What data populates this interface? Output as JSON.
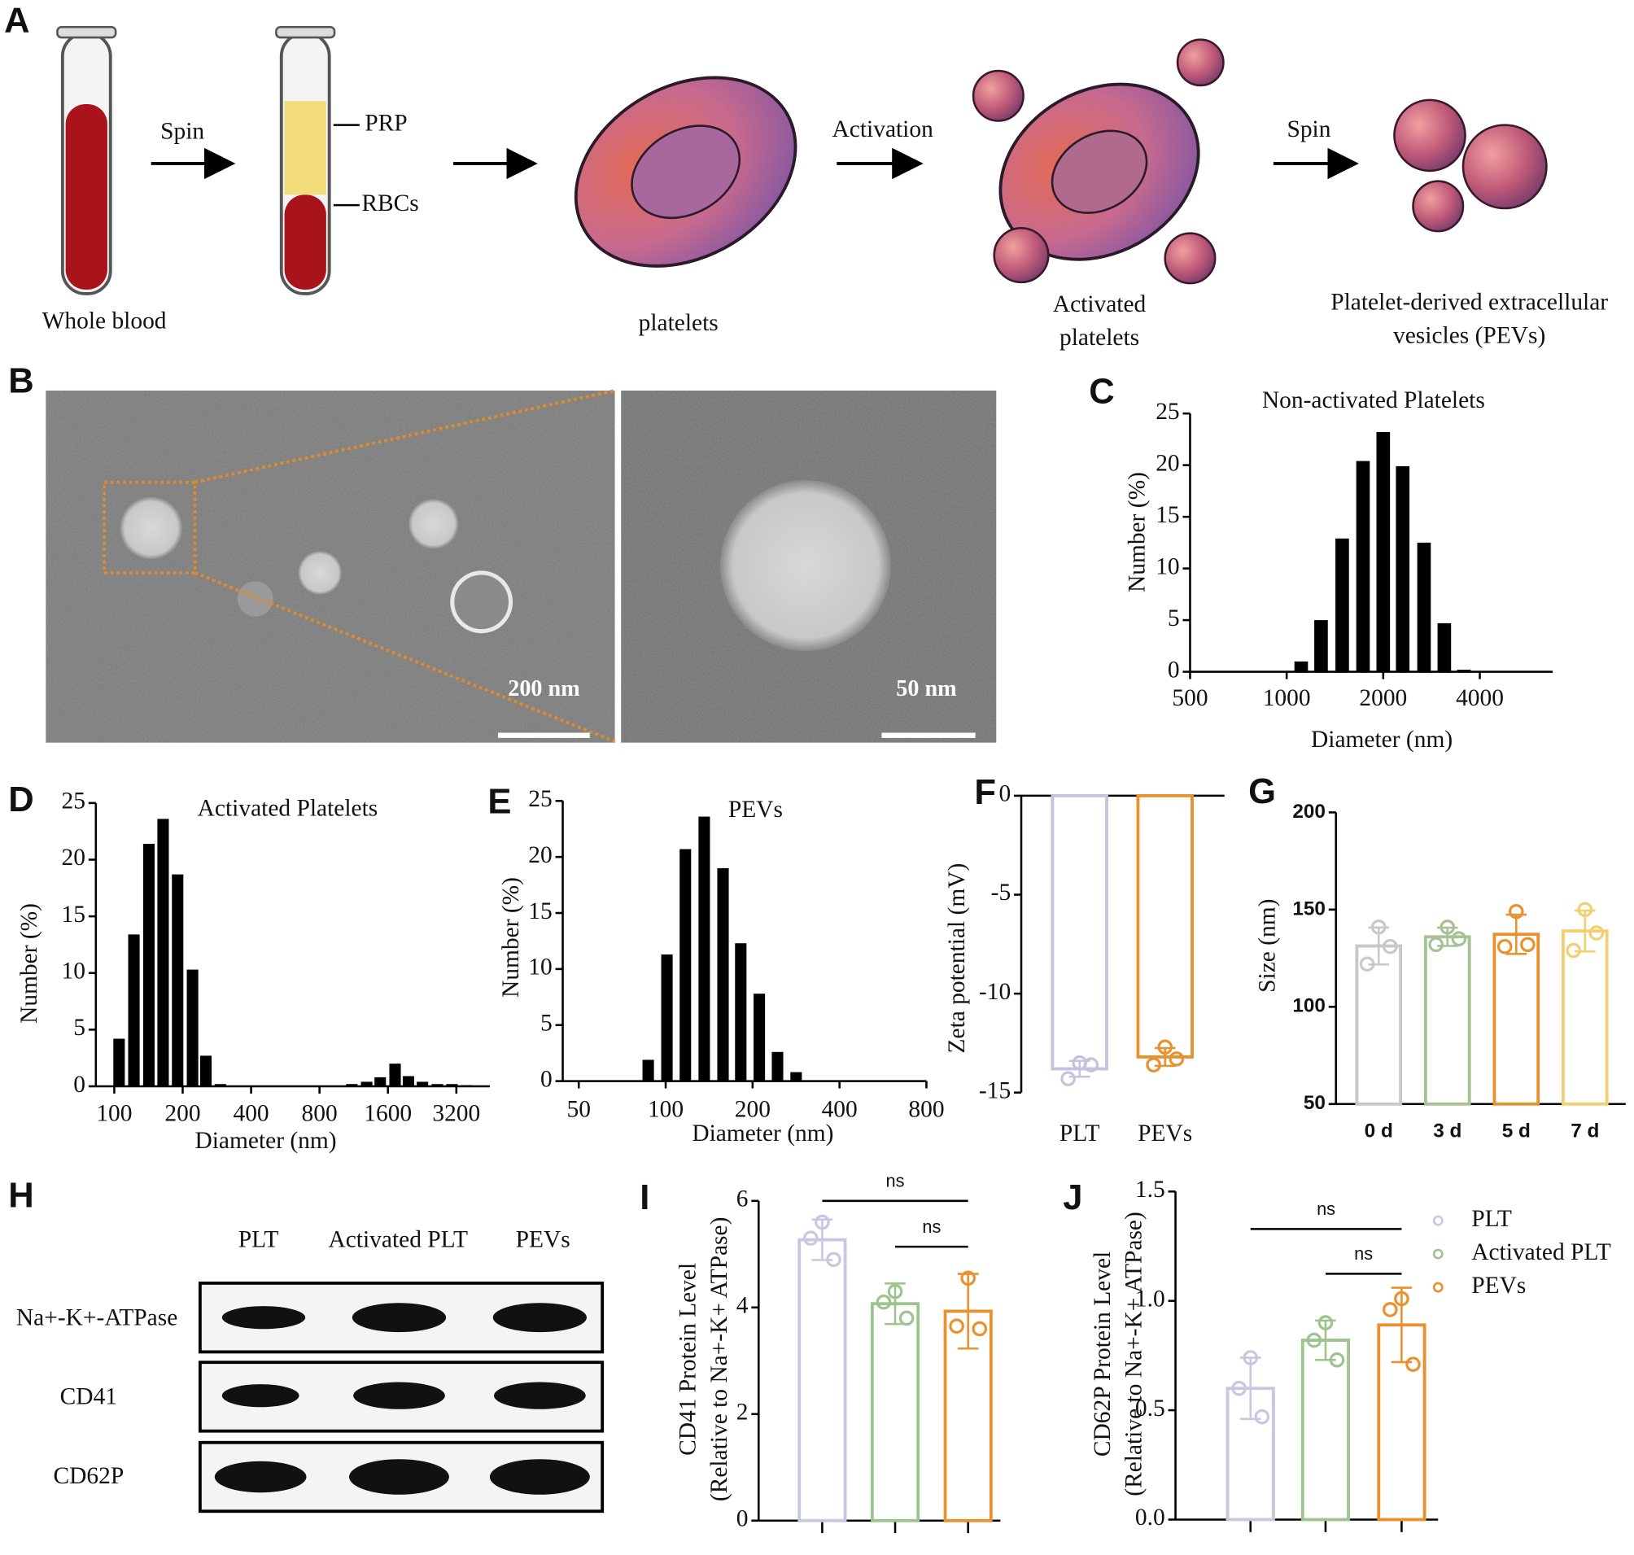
{
  "panel_labels": [
    "A",
    "B",
    "C",
    "D",
    "E",
    "F",
    "G",
    "H",
    "I",
    "J"
  ],
  "schematic": {
    "arrow_labels": [
      "Spin",
      "Activation",
      "Spin"
    ],
    "tube_labels": [
      "PRP",
      "RBCs"
    ],
    "captions": [
      [
        "Whole blood"
      ],
      [
        "platelets"
      ],
      [
        "Activated",
        "platelets"
      ],
      [
        "Platelet-derived extracellular",
        "vesicles (PEVs)"
      ]
    ]
  },
  "tem": {
    "scale_bars": [
      "200 nm",
      "50 nm"
    ]
  },
  "western_blot": {
    "columns": [
      "PLT",
      "Activated PLT",
      "PEVs"
    ],
    "rows": [
      "Na+-K+-ATPase",
      "CD41",
      "CD62P"
    ]
  },
  "chart_data": [
    {
      "type": "bar",
      "title": "Non-activated Platelets",
      "xlabel": "Diameter (nm)",
      "ylabel": "Number (%)",
      "xscale": "log",
      "x": [
        1110,
        1280,
        1490,
        1730,
        2000,
        2300,
        2680,
        3100,
        3570
      ],
      "values": [
        1.0,
        5.0,
        12.9,
        20.4,
        23.2,
        19.9,
        12.5,
        4.7,
        0.2
      ],
      "color": "#000000",
      "xlim": [
        500,
        6750
      ],
      "xticks": [
        500,
        1000,
        2000,
        4000
      ],
      "ylim": [
        0,
        25
      ],
      "yticks": [
        0,
        5,
        10,
        15,
        20,
        25
      ]
    },
    {
      "type": "bar",
      "title": "Activated Platelets",
      "xlabel": "Diameter (nm)",
      "ylabel": "Number (%)",
      "xscale": "log",
      "x": [
        105,
        122,
        142,
        164,
        190,
        221,
        253,
        293,
        1110,
        1290,
        1480,
        1720,
        1970,
        2270,
        2640,
        3060,
        3550
      ],
      "values": [
        4.2,
        13.4,
        21.4,
        23.6,
        18.7,
        10.3,
        2.7,
        0.2,
        0.2,
        0.4,
        0.8,
        2.0,
        0.9,
        0.4,
        0.2,
        0.2,
        0.1
      ],
      "color": "#000000",
      "xlim": [
        83,
        4490
      ],
      "xticks": [
        100,
        200,
        400,
        800,
        1600,
        3200
      ],
      "ylim": [
        0,
        25
      ],
      "yticks": [
        0,
        5,
        10,
        15,
        20,
        25
      ]
    },
    {
      "type": "bar",
      "title": "PEVs",
      "xlabel": "Diameter (nm)",
      "ylabel": "Number (%)",
      "xscale": "log",
      "x": [
        87,
        101,
        117,
        136,
        158,
        182,
        211,
        244,
        283
      ],
      "values": [
        1.9,
        11.3,
        20.7,
        23.6,
        19.0,
        12.3,
        7.8,
        2.6,
        0.8
      ],
      "color": "#000000",
      "xlim": [
        44,
        800
      ],
      "xticks": [
        50,
        100,
        200,
        400,
        800
      ],
      "ylim": [
        0,
        25
      ],
      "yticks": [
        0,
        5,
        10,
        15,
        20,
        25
      ]
    },
    {
      "type": "dotbar",
      "ylabel": [
        "Zeta potential (mV)"
      ],
      "categories": [
        "PLT",
        "PEVs"
      ],
      "values": [
        -13.8,
        -13.2
      ],
      "errors": [
        0.4,
        0.45
      ],
      "points": [
        [
          -13.5,
          -14.3,
          -13.6
        ],
        [
          -12.7,
          -13.6,
          -13.3
        ]
      ],
      "colors": [
        "#c3c3dd",
        "#e8912e"
      ],
      "ylim": [
        -15,
        0
      ],
      "yticks": [
        0,
        -5,
        -10,
        -15
      ]
    },
    {
      "type": "dotbar",
      "ylabel": [
        "Size (nm)"
      ],
      "categories": [
        "0 d",
        "3 d",
        "5 d",
        "7 d"
      ],
      "values": [
        131.3,
        136,
        137.3,
        139
      ],
      "errors": [
        9.5,
        4.7,
        10.1,
        10.5
      ],
      "points": [
        [
          141,
          122,
          131
        ],
        [
          141,
          132,
          135
        ],
        [
          149,
          131,
          132
        ],
        [
          150,
          129,
          138
        ]
      ],
      "colors": [
        "#c8c8c8",
        "#a6c196",
        "#e8912e",
        "#f2cf72"
      ],
      "ylim": [
        50,
        200
      ],
      "yticks": [
        50,
        100,
        150,
        200
      ]
    },
    {
      "type": "dotbar",
      "ylabel": [
        "CD41 Protein Level",
        "(Relative to Na+-K+ ATPase)"
      ],
      "categories": [
        null,
        null,
        null
      ],
      "values": [
        5.27,
        4.07,
        3.93
      ],
      "errors": [
        0.38,
        0.38,
        0.7
      ],
      "points": [
        [
          5.6,
          5.3,
          4.9
        ],
        [
          4.3,
          4.1,
          3.8
        ],
        [
          4.55,
          3.65,
          3.6
        ]
      ],
      "colors": [
        "#c5c8e0",
        "#9dc38f",
        "#e8912e"
      ],
      "ylim": [
        0,
        6
      ],
      "yticks": [
        0,
        2,
        4,
        6
      ],
      "annotations": [
        "ns",
        "ns"
      ]
    },
    {
      "type": "dotbar",
      "ylabel": [
        "CD62P Protein Level",
        "(Relative to Na+-K+ ATPase)"
      ],
      "categories": [
        null,
        null,
        null
      ],
      "values": [
        0.6,
        0.82,
        0.89
      ],
      "errors": [
        0.14,
        0.09,
        0.17
      ],
      "points": [
        [
          0.74,
          0.6,
          0.47
        ],
        [
          0.9,
          0.82,
          0.73
        ],
        [
          1.01,
          0.96,
          0.71
        ]
      ],
      "colors": [
        "#c5c8e0",
        "#9dc38f",
        "#e8912e"
      ],
      "ylim": [
        0,
        1.5
      ],
      "yticks": [
        {
          "value": 0,
          "label": "0.0"
        },
        {
          "value": 0.5,
          "label": "0.5"
        },
        {
          "value": 1,
          "label": "1.0"
        },
        {
          "value": 1.5,
          "label": "1.5"
        }
      ],
      "annotations": [
        "ns",
        "ns"
      ],
      "legend": [
        "PLT",
        "Activated PLT",
        "PEVs"
      ],
      "legend_position": "upper right"
    }
  ]
}
